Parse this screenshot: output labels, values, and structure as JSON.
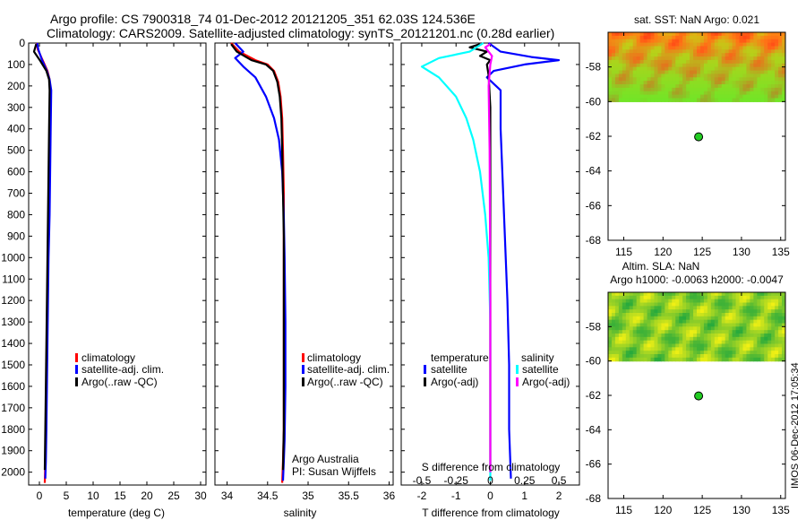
{
  "header": {
    "title_line1": "Argo profile: CS 7900318_74 01-Dec-2012 20121205_351 62.03S 124.536E",
    "title_line2": "Climatology: CARS2009. Satellite-adjusted climatology: synTS_20121201.nc (0.28d earlier)"
  },
  "side_label": "IMOS 06-Dec-2012 17:05:34",
  "colors": {
    "climatology": "#ff0000",
    "satellite_adj": "#0000ff",
    "argo": "#000000",
    "salinity_satellite": "#00ffff",
    "salinity_argo": "#ff00ff",
    "marker": "#22cc22"
  },
  "chart_data": [
    {
      "id": "temperature",
      "type": "line",
      "xlabel": "temperature (deg C)",
      "ylabel": "",
      "xlim": [
        -2,
        31
      ],
      "ylim": [
        2060,
        0
      ],
      "xticks": [
        0,
        5,
        10,
        15,
        20,
        25,
        30
      ],
      "yticks": [
        0,
        100,
        200,
        300,
        400,
        500,
        600,
        700,
        800,
        900,
        1000,
        1100,
        1200,
        1300,
        1400,
        1500,
        1600,
        1700,
        1800,
        1900,
        2000
      ],
      "legend": [
        "climatology",
        "satellite-adj. clim.",
        "Argo(..raw -QC)"
      ],
      "series": [
        {
          "name": "climatology",
          "color": "#ff0000",
          "x": [
            -0.5,
            -0.3,
            0.6,
            1.5,
            1.9,
            2.0,
            1.9,
            1.8,
            1.7,
            1.6,
            1.5,
            1.4,
            1.3,
            1.2,
            1.1,
            1.0
          ],
          "y": [
            0,
            30,
            80,
            130,
            170,
            220,
            400,
            600,
            800,
            1000,
            1200,
            1400,
            1600,
            1800,
            1950,
            2050
          ]
        },
        {
          "name": "satellite-adj. clim.",
          "color": "#0000ff",
          "x": [
            -0.4,
            -0.2,
            0.5,
            1.4,
            1.9,
            2.2,
            2.1,
            2.0,
            1.9,
            1.7,
            1.6,
            1.5,
            1.4,
            1.3,
            1.2,
            1.1
          ],
          "y": [
            0,
            30,
            80,
            130,
            170,
            220,
            400,
            600,
            800,
            1000,
            1200,
            1400,
            1600,
            1800,
            1950,
            2030
          ]
        },
        {
          "name": "Argo(..raw -QC)",
          "color": "#000000",
          "x": [
            -0.6,
            -1.0,
            0.2,
            1.3,
            1.8,
            1.9,
            1.8,
            1.7,
            1.6,
            1.5,
            1.4,
            1.3,
            1.2,
            1.1,
            1.0
          ],
          "y": [
            5,
            40,
            85,
            130,
            170,
            220,
            400,
            600,
            800,
            1000,
            1200,
            1400,
            1600,
            1800,
            1990
          ]
        }
      ]
    },
    {
      "id": "salinity",
      "type": "line",
      "xlabel": "salinity",
      "ylabel": "",
      "xlim": [
        33.85,
        36.05
      ],
      "ylim": [
        2060,
        0
      ],
      "xticks": [
        34,
        34.5,
        35,
        35.5,
        36
      ],
      "legend": [
        "climatology",
        "satellite-adj. clim.",
        "Argo(..raw -QC)"
      ],
      "annotation": [
        "Argo Australia",
        "PI: Susan Wijffels"
      ],
      "series": [
        {
          "name": "climatology",
          "color": "#ff0000",
          "x": [
            34.05,
            34.15,
            34.35,
            34.5,
            34.58,
            34.63,
            34.66,
            34.68,
            34.69,
            34.7,
            34.7,
            34.7,
            34.7,
            34.7,
            34.69,
            34.68
          ],
          "y": [
            0,
            40,
            80,
            100,
            130,
            180,
            250,
            350,
            500,
            700,
            900,
            1200,
            1500,
            1800,
            1950,
            2050
          ]
        },
        {
          "name": "satellite-adj. clim.",
          "color": "#0000ff",
          "x": [
            34.1,
            34.2,
            34.1,
            34.2,
            34.35,
            34.48,
            34.58,
            34.64,
            34.68,
            34.7,
            34.71,
            34.72,
            34.72,
            34.71,
            34.7,
            34.69
          ],
          "y": [
            0,
            40,
            70,
            110,
            160,
            250,
            350,
            450,
            600,
            800,
            1000,
            1300,
            1600,
            1850,
            1950,
            2040
          ]
        },
        {
          "name": "Argo(..raw -QC)",
          "color": "#000000",
          "x": [
            34.05,
            34.12,
            34.3,
            34.48,
            34.57,
            34.62,
            34.65,
            34.67,
            34.68,
            34.69,
            34.7,
            34.7,
            34.7,
            34.7,
            34.69
          ],
          "y": [
            5,
            40,
            80,
            100,
            130,
            180,
            250,
            350,
            500,
            700,
            900,
            1200,
            1500,
            1800,
            1990
          ]
        }
      ]
    },
    {
      "id": "difference",
      "type": "line",
      "xlabel": "T difference from climatology",
      "xlabel_top": "S difference from climatology",
      "xlim": [
        -2.6,
        2.6
      ],
      "ylim": [
        2060,
        0
      ],
      "xticks": [
        -2,
        -1,
        0,
        1,
        2
      ],
      "top_ticks": [
        "-0.5",
        "-0.25",
        "0",
        "0.25",
        "0.5"
      ],
      "top_tick_positions": [
        -2,
        -1,
        0,
        1,
        2
      ],
      "legend_groups": [
        {
          "title": "temperature",
          "entries": [
            "satellite",
            "Argo(-adj)"
          ],
          "colors": [
            "#0000ff",
            "#000000"
          ]
        },
        {
          "title": "salinity",
          "entries": [
            "satellite",
            "Argo(-adj)"
          ],
          "colors": [
            "#00ffff",
            "#ff00ff"
          ]
        }
      ],
      "series": [
        {
          "name": "temperature satellite",
          "color": "#0000ff",
          "x": [
            -0.05,
            0.3,
            1.2,
            2.0,
            1.0,
            0.1,
            -0.1,
            0.3,
            0.3,
            0.35,
            0.4,
            0.45,
            0.5,
            0.55,
            0.55,
            0.6
          ],
          "y": [
            0,
            40,
            65,
            80,
            100,
            130,
            160,
            220,
            400,
            600,
            800,
            1000,
            1200,
            1500,
            1800,
            2030
          ]
        },
        {
          "name": "temperature Argo(-adj)",
          "color": "#000000",
          "x": [
            -0.3,
            -0.6,
            -0.1,
            -0.3,
            0.0,
            -0.1,
            -0.05,
            0.0,
            0.0,
            0.0,
            0.0
          ],
          "y": [
            5,
            20,
            40,
            60,
            80,
            100,
            150,
            300,
            700,
            1400,
            2000
          ]
        },
        {
          "name": "salinity satellite",
          "color": "#00ffff",
          "x": [
            -0.2,
            -0.6,
            -1.5,
            -2.0,
            -1.5,
            -1.0,
            -0.7,
            -0.5,
            -0.3,
            -0.15,
            -0.05,
            0.0,
            0.0,
            0.0
          ],
          "y": [
            0,
            40,
            70,
            110,
            160,
            250,
            350,
            450,
            600,
            800,
            1000,
            1300,
            1600,
            2040
          ]
        },
        {
          "name": "salinity Argo(-adj)",
          "color": "#ff00ff",
          "x": [
            0.0,
            -0.15,
            0.05,
            0.0,
            -0.05,
            -0.02,
            0.0,
            0.0
          ],
          "y": [
            5,
            20,
            60,
            100,
            200,
            500,
            1200,
            2000
          ]
        }
      ]
    },
    {
      "id": "sst_map",
      "type": "heatmap",
      "title": "sat. SST: NaN Argo: 0.021",
      "xlim": [
        113,
        135.6
      ],
      "ylim": [
        -68,
        -56
      ],
      "xticks": [
        115,
        120,
        125,
        130,
        135
      ],
      "yticks": [
        -58,
        -60,
        -62,
        -64,
        -66,
        -68
      ],
      "data_lat_range": [
        -60,
        -56
      ],
      "palette": "orange-yellow-green",
      "marker": {
        "lon": 124.536,
        "lat": -62.03
      }
    },
    {
      "id": "sla_map",
      "type": "heatmap",
      "title_line1": "Altim. SLA: NaN",
      "title_line2": "Argo h1000: -0.0063 h2000: -0.0047",
      "xlim": [
        113,
        135.6
      ],
      "ylim": [
        -68,
        -56
      ],
      "xticks": [
        115,
        120,
        125,
        130,
        135
      ],
      "yticks": [
        -58,
        -60,
        -62,
        -64,
        -66,
        -68
      ],
      "data_lat_range": [
        -60,
        -56
      ],
      "palette": "green-yellow",
      "marker": {
        "lon": 124.536,
        "lat": -62.03
      }
    }
  ]
}
